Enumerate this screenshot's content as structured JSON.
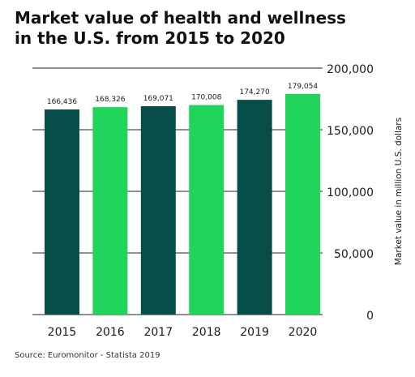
{
  "title_line1": "Market value of health and wellness",
  "title_line2": "in the U.S. from 2015 to 2020",
  "source": "Source: Euromonitor - Statista 2019",
  "colors": {
    "dark_green": "#064e47",
    "bright_green": "#21d55b",
    "grid": "#222222",
    "text": "#1a1a1a"
  },
  "chart_data": {
    "type": "bar",
    "title": "Market value of health and wellness in the U.S. from 2015 to 2020",
    "categories": [
      "2015",
      "2016",
      "2017",
      "2018",
      "2019",
      "2020"
    ],
    "values": [
      166436,
      168326,
      169071,
      170008,
      174270,
      179054
    ],
    "value_labels": [
      "166,436",
      "168,326",
      "169,071",
      "170,008",
      "174,270",
      "179,054"
    ],
    "bar_colors": [
      "#064e47",
      "#21d55b",
      "#064e47",
      "#21d55b",
      "#064e47",
      "#21d55b"
    ],
    "xlabel": "",
    "ylabel": "Market value in million U.S. dollars",
    "ylim": [
      0,
      200000
    ],
    "yticks": [
      0,
      50000,
      100000,
      150000,
      200000
    ],
    "ytick_labels": [
      "0",
      "50,000",
      "100,000",
      "150,000",
      "200,000"
    ],
    "y_axis_side": "right",
    "grid": true
  }
}
